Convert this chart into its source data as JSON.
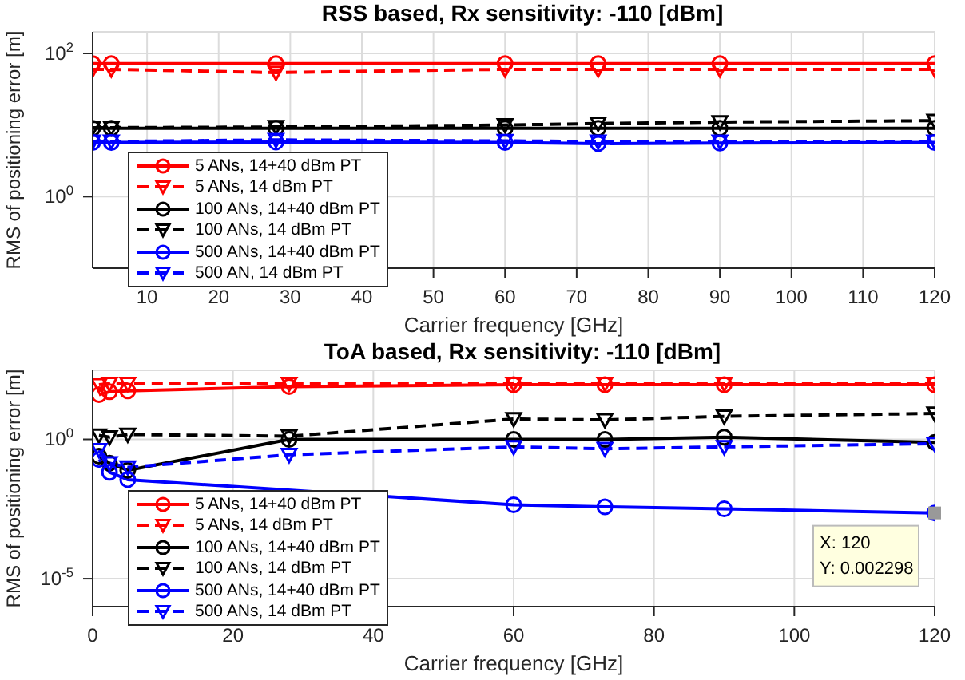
{
  "chart_data": [
    {
      "type": "line",
      "title": "RSS based, Rx sensitivity: -110 [dBm]",
      "xlabel": "Carrier frequency [GHz]",
      "ylabel": "RMS of positioning error [m]",
      "x": [
        2.4,
        5,
        28,
        60,
        73,
        90,
        120
      ],
      "series": [
        {
          "name": "5 ANs, 14+40 dBm PT",
          "color": "#ff0000",
          "marker": "circle",
          "line_style": "solid",
          "values": [
            72,
            72,
            72,
            72,
            72,
            72,
            72
          ]
        },
        {
          "name": "5 ANs, 14 dBm PT",
          "color": "#ff0000",
          "marker": "triangle",
          "line_style": "dashed",
          "values": [
            60,
            60,
            54,
            60,
            60,
            60,
            60
          ]
        },
        {
          "name": "100 ANs, 14+40 dBm PT",
          "color": "#000000",
          "marker": "circle",
          "line_style": "solid",
          "values": [
            9,
            9,
            9,
            9,
            9,
            9,
            9
          ]
        },
        {
          "name": "100 ANs, 14 dBm PT",
          "color": "#000000",
          "marker": "triangle",
          "line_style": "dashed",
          "values": [
            9.2,
            9.2,
            9.4,
            10,
            10.5,
            11,
            11.5
          ]
        },
        {
          "name": "500 ANs, 14+40 dBm PT",
          "color": "#0000ff",
          "marker": "circle",
          "line_style": "solid",
          "values": [
            5.7,
            5.7,
            5.8,
            5.7,
            5.5,
            5.6,
            5.7
          ]
        },
        {
          "name": "500 AN, 14 dBm PT",
          "color": "#0000ff",
          "marker": "triangle",
          "line_style": "dashed",
          "values": [
            5.9,
            5.9,
            6.2,
            6,
            5.9,
            5.9,
            5.9
          ]
        }
      ],
      "xlim": [
        2.4,
        120
      ],
      "xticks": [
        10,
        20,
        30,
        40,
        50,
        60,
        70,
        80,
        90,
        100,
        110,
        120
      ],
      "ylim": [
        0.1,
        200
      ],
      "yticks": [
        {
          "value": 1,
          "label": "10$^{0}$"
        },
        {
          "value": 100,
          "label": "10$^{2}$"
        }
      ],
      "log": "y",
      "grid": true,
      "legend": "bottom left"
    },
    {
      "type": "line",
      "title": "ToA based, Rx sensitivity: -110 [dBm]",
      "xlabel": "Carrier frequency [GHz]",
      "ylabel": "RMS of positioning error [m]",
      "x": [
        0.9,
        2.4,
        5,
        28,
        60,
        73,
        90,
        120
      ],
      "series": [
        {
          "name": "5 ANs, 14+40 dBm PT",
          "color": "#ff0000",
          "marker": "circle",
          "line_style": "solid",
          "values": [
            40,
            51,
            55,
            78,
            91,
            91,
            91,
            91
          ]
        },
        {
          "name": "5 ANs, 14 dBm PT",
          "color": "#ff0000",
          "marker": "triangle",
          "line_style": "dashed",
          "values": [
            91,
            100,
            100,
            100,
            100,
            100,
            100,
            100
          ]
        },
        {
          "name": "100 ANs, 14+40 dBm PT",
          "color": "#000000",
          "marker": "circle",
          "line_style": "solid",
          "values": [
            0.25,
            0.14,
            0.078,
            1,
            1,
            1,
            1.2,
            0.78
          ]
        },
        {
          "name": "100 ANs, 14 dBm PT",
          "color": "#000000",
          "marker": "triangle",
          "line_style": "dashed",
          "values": [
            1.4,
            1.2,
            1.5,
            1.3,
            5.4,
            5,
            6.7,
            8.5
          ]
        },
        {
          "name": "500 ANs, 14+40 dBm PT",
          "color": "#0000ff",
          "marker": "circle",
          "line_style": "solid",
          "values": [
            0.19,
            0.066,
            0.036,
            null,
            0.0045,
            0.0038,
            0.0032,
            0.002298
          ]
        },
        {
          "name": "500 ANs, 14 dBm PT",
          "color": "#0000ff",
          "marker": "triangle",
          "line_style": "dashed",
          "values": [
            0.42,
            0.14,
            0.1,
            0.28,
            0.54,
            0.46,
            0.54,
            0.7
          ]
        }
      ],
      "xlim": [
        0,
        120
      ],
      "xticks": [
        0,
        20,
        40,
        60,
        80,
        100,
        120
      ],
      "ylim": [
        1e-06,
        300
      ],
      "yticks": [
        {
          "value": 1e-05,
          "label": "10$^{-5}$"
        },
        {
          "value": 1,
          "label": "10$^{0}$"
        }
      ],
      "annotations": [
        {
          "text": "X: 120\nY: 0.002298",
          "x": 120,
          "y": 0.002298
        }
      ],
      "log": "y",
      "grid": true,
      "legend": "bottom left"
    }
  ]
}
